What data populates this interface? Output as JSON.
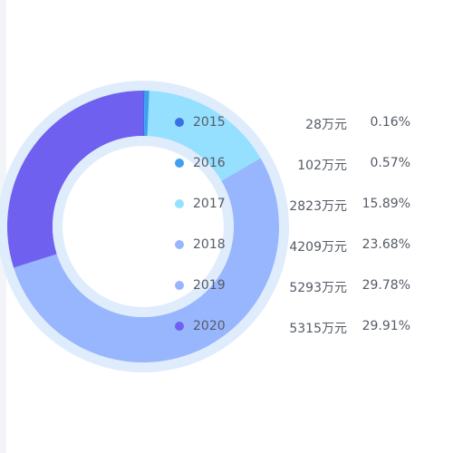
{
  "colors": {
    "ring_bg": "#dfecfc",
    "inner_ring": "#dfecfc",
    "side_strip": "#f3f4f8",
    "text": "#555b66"
  },
  "chart_data": {
    "type": "pie",
    "variant": "donut",
    "title": "",
    "categories": [
      "2015",
      "2016",
      "2017",
      "2018",
      "2019",
      "2020"
    ],
    "values": [
      28,
      102,
      2823,
      4209,
      5293,
      5315
    ],
    "value_labels": [
      "28万元",
      "102万元",
      "2823万元",
      "4209万元",
      "5293万元",
      "5315万元"
    ],
    "percent_labels": [
      "0.16%",
      "0.57%",
      "15.89%",
      "23.68%",
      "29.78%",
      "29.91%"
    ],
    "colors": [
      "#3a6fe8",
      "#3fa0f0",
      "#96e0ff",
      "#98b6fd",
      "#98b6fd",
      "#7060f0"
    ],
    "legend_position": "right"
  }
}
